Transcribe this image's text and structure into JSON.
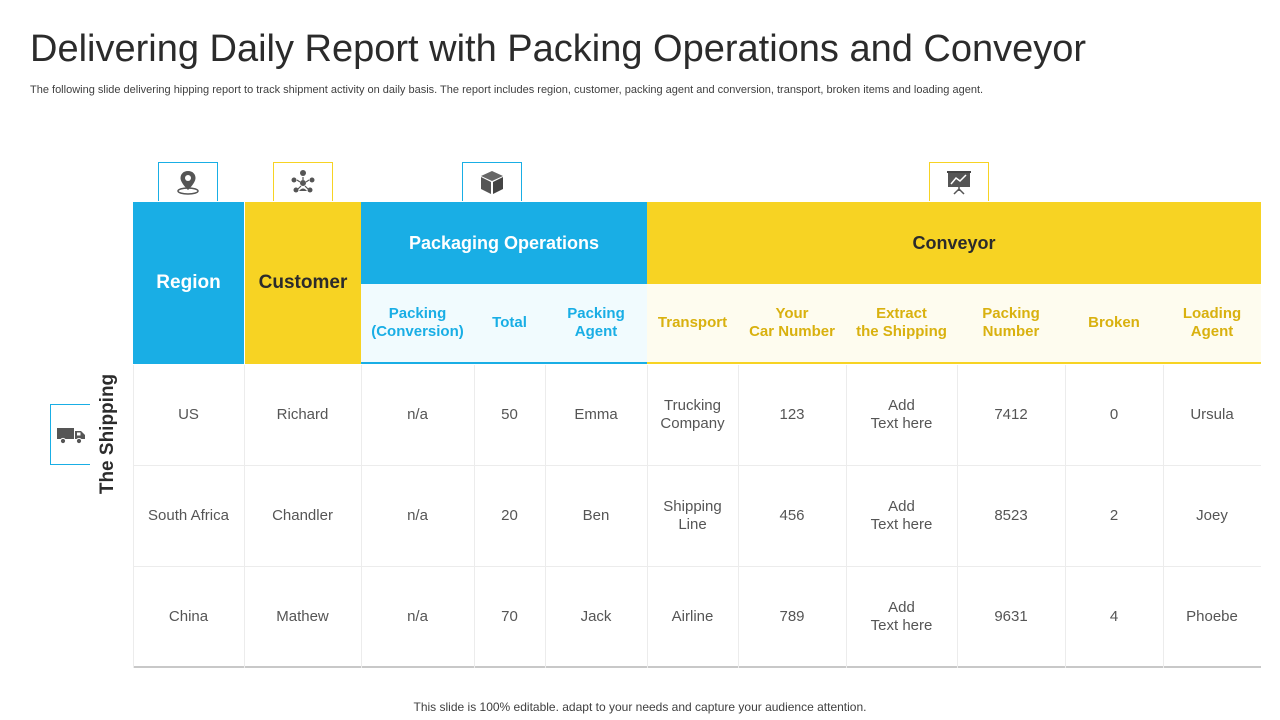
{
  "title": "Delivering Daily Report with Packing Operations and Conveyor",
  "subtitle": "The following slide delivering hipping report to track shipment activity on daily basis. The report includes region, customer, packing agent and conversion, transport, broken items and loading agent.",
  "footer": "This slide is 100% editable. adapt to your needs and capture your audience attention.",
  "side_label": "The Shipping",
  "colors": {
    "blue": "#19aee5",
    "yellow": "#f7d323"
  },
  "icons": [
    "location-pin-icon",
    "team-network-icon",
    "box-icon",
    "presentation-board-icon",
    "truck-icon"
  ],
  "headers": {
    "region": "Region",
    "customer": "Customer",
    "packaging": "Packaging Operations",
    "conveyor": "Conveyor",
    "sub": [
      "Packing\n(Conversion)",
      "Total",
      "Packing\nAgent",
      "Transport",
      "Your\nCar Number",
      "Extract\nthe Shipping",
      "Packing\nNumber",
      "Broken",
      "Loading\nAgent"
    ]
  },
  "rows": [
    [
      "US",
      "Richard",
      "n/a",
      "50",
      "Emma",
      "Trucking\nCompany",
      "123",
      "Add\nText here",
      "7412",
      "0",
      "Ursula"
    ],
    [
      "South Africa",
      "Chandler",
      "n/a",
      "20",
      "Ben",
      "Shipping\nLine",
      "456",
      "Add\nText here",
      "8523",
      "2",
      "Joey"
    ],
    [
      "China",
      "Mathew",
      "n/a",
      "70",
      "Jack",
      "Airline",
      "789",
      "Add\nText here",
      "9631",
      "4",
      "Phoebe"
    ]
  ]
}
